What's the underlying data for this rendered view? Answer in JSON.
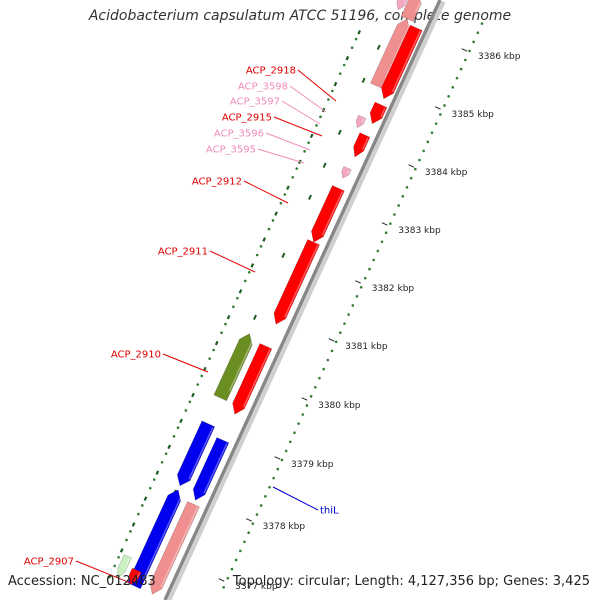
{
  "title": "Acidobacterium capsulatum ATCC 51196, complete genome",
  "footer": {
    "accession": "Accession: NC_012483",
    "summary": "Topology: circular; Length: 4,127,356 bp; Genes: 3,425"
  },
  "colors": {
    "backbone": "#888888",
    "gene_red": "#ff0000",
    "gene_pink": "#f08f8f",
    "gene_lightpink": "#f4a8c0",
    "gene_blue": "#0000ee",
    "gene_green": "#6b8e23",
    "gene_palegreen": "#c8f0c0",
    "dot_green": "#2e7d32",
    "label_red": "#e00000",
    "label_pink": "#f08cbc",
    "label_blue": "#0000cc"
  },
  "scale_ticks": [
    {
      "label": "3386 kbp"
    },
    {
      "label": "3385 kbp"
    },
    {
      "label": "3384 kbp"
    },
    {
      "label": "3383 kbp"
    },
    {
      "label": "3382 kbp"
    },
    {
      "label": "3381 kbp"
    },
    {
      "label": "3380 kbp"
    },
    {
      "label": "3379 kbp"
    },
    {
      "label": "3378 kbp"
    },
    {
      "label": "3377 kbp"
    }
  ],
  "gene_labels": [
    {
      "id": "ACP_2918",
      "style": "red"
    },
    {
      "id": "ACP_3598",
      "style": "pink"
    },
    {
      "id": "ACP_3597",
      "style": "pink"
    },
    {
      "id": "ACP_2915",
      "style": "red"
    },
    {
      "id": "ACP_3596",
      "style": "pink"
    },
    {
      "id": "ACP_3595",
      "style": "pink"
    },
    {
      "id": "ACP_2912",
      "style": "red"
    },
    {
      "id": "ACP_2911",
      "style": "red"
    },
    {
      "id": "ACP_2910",
      "style": "red"
    },
    {
      "id": "ACP_2907",
      "style": "red"
    },
    {
      "id": "thiL",
      "style": "blue"
    }
  ]
}
